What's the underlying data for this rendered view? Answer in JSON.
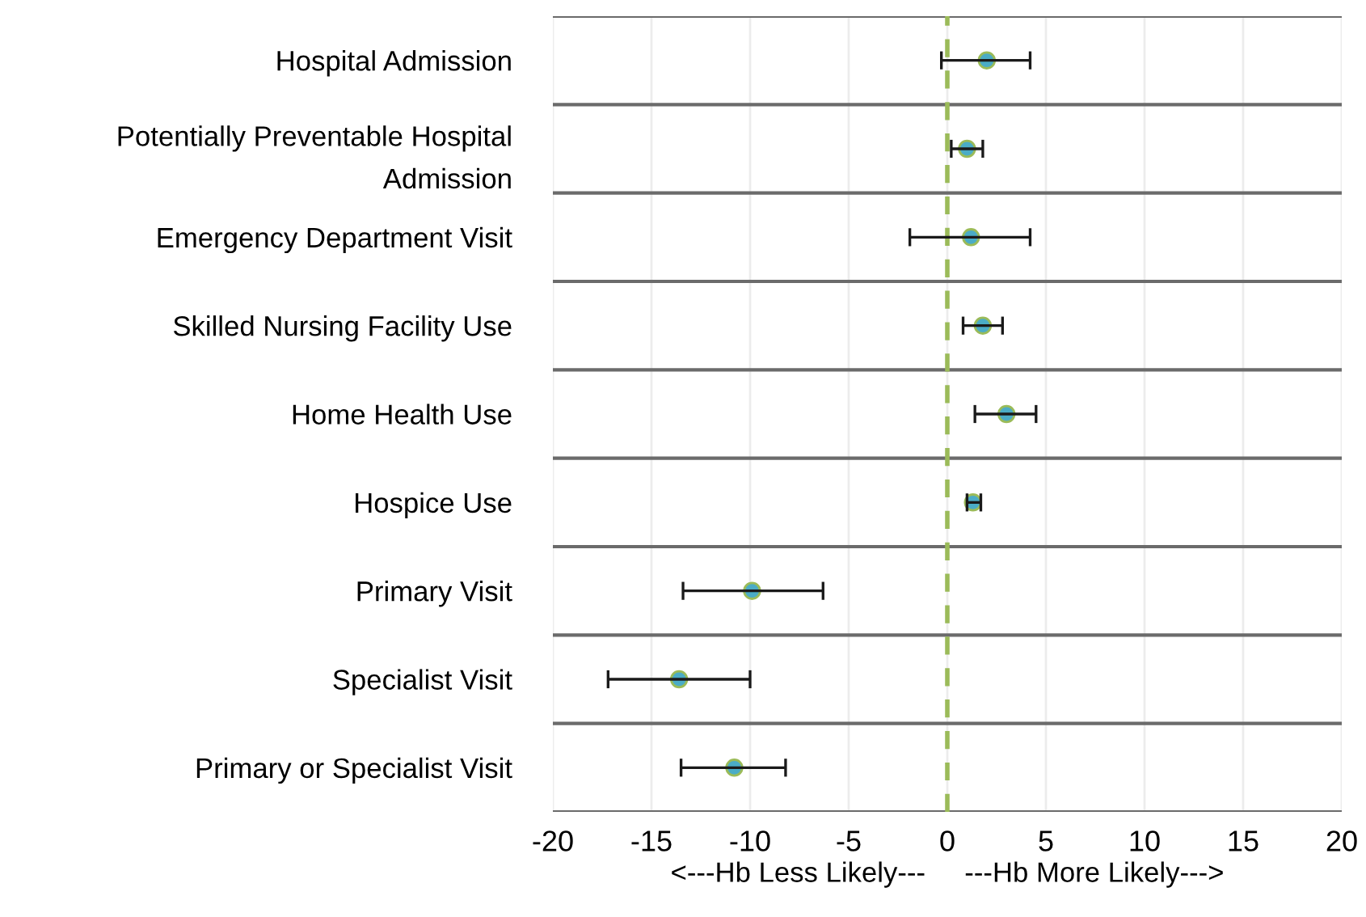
{
  "chart_data": {
    "type": "scatter",
    "orientation": "horizontal",
    "categories": [
      "Hospital Admission",
      "Potentially Preventable Hospital\nAdmission",
      "Emergency Department Visit",
      "Skilled Nursing Facility Use",
      "Home Health Use",
      "Hospice Use",
      "Primary Visit",
      "Specialist Visit",
      "Primary or Specialist Visit"
    ],
    "series": [
      {
        "color": "#4bacc6",
        "values": [
          2.0,
          1.0,
          1.2,
          1.8,
          3.0,
          1.3,
          -9.9,
          -13.6,
          -10.8
        ],
        "errors": [
          [
            -0.3,
            4.2
          ],
          [
            0.2,
            1.8
          ],
          [
            -1.9,
            4.2
          ],
          [
            0.8,
            2.8
          ],
          [
            1.4,
            4.5
          ],
          [
            1.0,
            1.7
          ],
          [
            -13.4,
            -6.3
          ],
          [
            -17.2,
            -10.0
          ],
          [
            -13.5,
            -8.2
          ]
        ]
      }
    ],
    "xlim": [
      -20,
      20
    ],
    "xticks": [
      -20,
      -15,
      -10,
      -5,
      0,
      5,
      10,
      15,
      20
    ],
    "xlabel": "<---Hb Less Likely---     ---Hb More Likely--->",
    "ref_lines": [
      {
        "axis": "x",
        "value": 0,
        "color": "#9bbb59",
        "line_style": "dashed"
      }
    ],
    "marker": "circle",
    "grid": true,
    "legend": false
  }
}
